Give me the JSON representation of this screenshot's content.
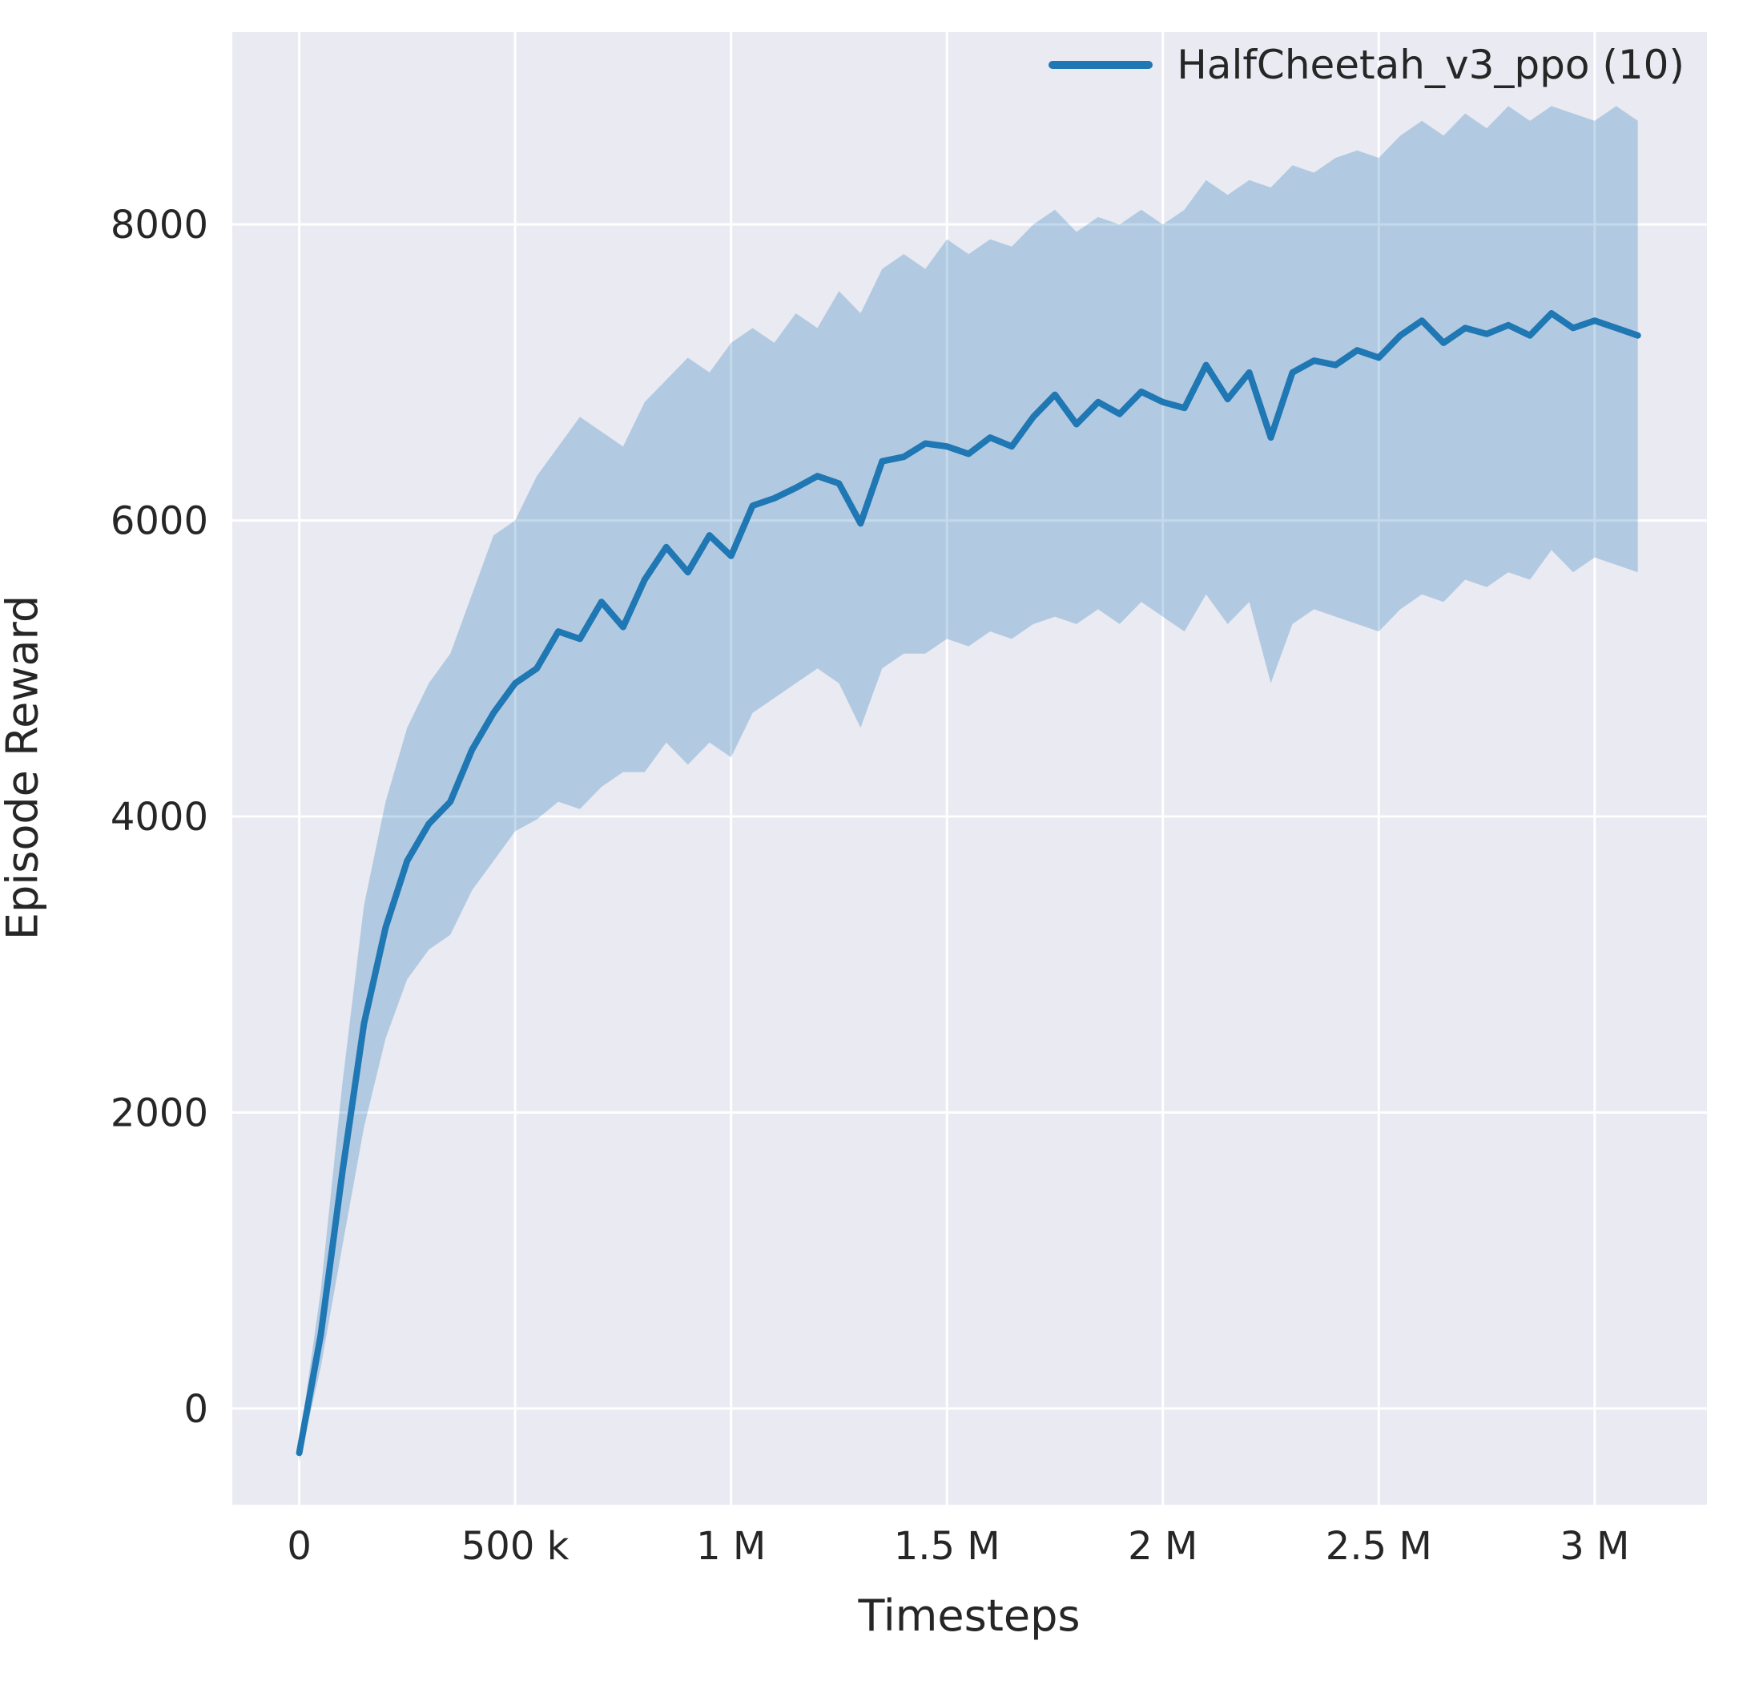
{
  "chart_data": {
    "type": "line",
    "title": "",
    "xlabel": "Timesteps",
    "ylabel": "Episode Reward",
    "grid": true,
    "legend": {
      "position": "upper right",
      "entries": [
        "HalfCheetah_v3_ppo (10)"
      ]
    },
    "xlim": [
      -155000,
      3260000
    ],
    "ylim": [
      -650,
      9300
    ],
    "x_ticks": [
      {
        "v": 0,
        "label": "0"
      },
      {
        "v": 500000,
        "label": "500 k"
      },
      {
        "v": 1000000,
        "label": "1 M"
      },
      {
        "v": 1500000,
        "label": "1.5 M"
      },
      {
        "v": 2000000,
        "label": "2 M"
      },
      {
        "v": 2500000,
        "label": "2.5 M"
      },
      {
        "v": 3000000,
        "label": "3 M"
      }
    ],
    "y_ticks": [
      {
        "v": 0,
        "label": "0"
      },
      {
        "v": 2000,
        "label": "2000"
      },
      {
        "v": 4000,
        "label": "4000"
      },
      {
        "v": 6000,
        "label": "6000"
      },
      {
        "v": 8000,
        "label": "8000"
      }
    ],
    "colors": {
      "line": "#1f77b4",
      "band": "#1f77b4",
      "band_opacity": 0.27,
      "plot_bg": "#eaeaf2",
      "grid": "#ffffff",
      "tick": "#262626"
    },
    "series": [
      {
        "name": "HalfCheetah_v3_ppo (10)",
        "x": [
          0,
          50000,
          100000,
          150000,
          200000,
          250000,
          300000,
          350000,
          400000,
          450000,
          500000,
          550000,
          600000,
          650000,
          700000,
          750000,
          800000,
          850000,
          900000,
          950000,
          1000000,
          1050000,
          1100000,
          1150000,
          1200000,
          1250000,
          1300000,
          1350000,
          1400000,
          1450000,
          1500000,
          1550000,
          1600000,
          1650000,
          1700000,
          1750000,
          1800000,
          1850000,
          1900000,
          1950000,
          2000000,
          2050000,
          2100000,
          2150000,
          2200000,
          2250000,
          2300000,
          2350000,
          2400000,
          2450000,
          2500000,
          2550000,
          2600000,
          2650000,
          2700000,
          2750000,
          2800000,
          2850000,
          2900000,
          2950000,
          3000000,
          3050000,
          3100000
        ],
        "mean": [
          -300,
          500,
          1600,
          2600,
          3250,
          3700,
          3950,
          4100,
          4450,
          4700,
          4900,
          5000,
          5250,
          5200,
          5450,
          5280,
          5600,
          5820,
          5650,
          5900,
          5760,
          6100,
          6150,
          6220,
          6300,
          6250,
          5980,
          6400,
          6430,
          6520,
          6500,
          6450,
          6560,
          6500,
          6700,
          6850,
          6650,
          6800,
          6720,
          6870,
          6800,
          6760,
          7050,
          6820,
          7000,
          6560,
          7000,
          7080,
          7050,
          7150,
          7100,
          7250,
          7350,
          7200,
          7300,
          7260,
          7320,
          7250,
          7400,
          7300,
          7350,
          7300,
          7250
        ],
        "low": [
          -360,
          280,
          1100,
          1900,
          2500,
          2900,
          3100,
          3200,
          3500,
          3700,
          3900,
          3980,
          4100,
          4050,
          4200,
          4300,
          4300,
          4500,
          4350,
          4500,
          4400,
          4700,
          4800,
          4900,
          5000,
          4900,
          4600,
          5000,
          5100,
          5100,
          5200,
          5150,
          5250,
          5200,
          5300,
          5350,
          5300,
          5400,
          5300,
          5450,
          5350,
          5250,
          5500,
          5300,
          5450,
          4900,
          5300,
          5400,
          5350,
          5300,
          5250,
          5400,
          5500,
          5450,
          5600,
          5550,
          5650,
          5600,
          5800,
          5650,
          5750,
          5700,
          5650
        ],
        "high": [
          -240,
          800,
          2200,
          3400,
          4100,
          4600,
          4900,
          5100,
          5500,
          5900,
          6000,
          6300,
          6500,
          6700,
          6600,
          6500,
          6800,
          6950,
          7100,
          7000,
          7200,
          7300,
          7200,
          7400,
          7300,
          7550,
          7400,
          7700,
          7800,
          7700,
          7900,
          7800,
          7900,
          7850,
          8000,
          8100,
          7950,
          8050,
          8000,
          8100,
          8000,
          8100,
          8300,
          8200,
          8300,
          8250,
          8400,
          8350,
          8450,
          8500,
          8450,
          8600,
          8700,
          8600,
          8750,
          8650,
          8800,
          8700,
          8800,
          8750,
          8700,
          8800,
          8700
        ]
      }
    ]
  }
}
